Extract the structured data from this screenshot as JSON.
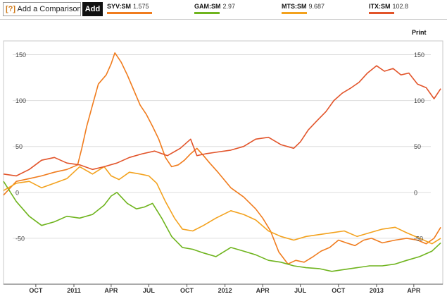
{
  "toolbar": {
    "help_mark": "[?]",
    "compare_label": "Add a Comparison",
    "add_label": "Add",
    "print_label": "Print"
  },
  "legend": [
    {
      "ticker": "SYV:SM",
      "value": "1.575",
      "color": "#f07c1e"
    },
    {
      "ticker": "GAM:SM",
      "value": "2.97",
      "color": "#6fb41e"
    },
    {
      "ticker": "MTS:SM",
      "value": "9.687",
      "color": "#f3a21e"
    },
    {
      "ticker": "ITX:SM",
      "value": "102.8",
      "color": "#e2542a"
    }
  ],
  "chart_data": {
    "type": "line",
    "title": "",
    "xlabel": "",
    "ylabel": "",
    "x_ticks": [
      "OCT",
      "2011",
      "APR",
      "JUL",
      "OCT",
      "2012",
      "APR",
      "JUL",
      "OCT",
      "2013",
      "APR"
    ],
    "y_ticks": [
      150,
      100,
      50,
      0,
      -50
    ],
    "ylim": [
      -100,
      165
    ],
    "xlim": [
      "2010-07-15",
      "2013-06-10"
    ],
    "grid": true,
    "series": [
      {
        "name": "SYV:SM",
        "color": "#f07c1e",
        "x": [
          "2010-07-15",
          "2010-08-15",
          "2010-09-15",
          "2010-10-15",
          "2010-11-15",
          "2010-12-15",
          "2011-01-10",
          "2011-01-20",
          "2011-02-01",
          "2011-02-15",
          "2011-03-01",
          "2011-03-20",
          "2011-04-01",
          "2011-04-10",
          "2011-04-25",
          "2011-05-10",
          "2011-05-25",
          "2011-06-10",
          "2011-06-25",
          "2011-07-10",
          "2011-07-25",
          "2011-08-10",
          "2011-08-25",
          "2011-09-10",
          "2011-09-25",
          "2011-10-10",
          "2011-10-25",
          "2011-11-10",
          "2011-11-25",
          "2011-12-15",
          "2012-01-15",
          "2012-02-15",
          "2012-03-15",
          "2012-04-01",
          "2012-04-20",
          "2012-05-10",
          "2012-06-01",
          "2012-06-20",
          "2012-07-10",
          "2012-08-01",
          "2012-08-20",
          "2012-09-10",
          "2012-10-01",
          "2012-10-20",
          "2012-11-10",
          "2012-12-01",
          "2012-12-20",
          "2013-01-15",
          "2013-02-15",
          "2013-03-15",
          "2013-04-10",
          "2013-05-01",
          "2013-05-20",
          "2013-06-05"
        ],
        "values": [
          -3,
          12,
          15,
          18,
          22,
          25,
          30,
          48,
          72,
          95,
          118,
          128,
          140,
          152,
          142,
          128,
          112,
          95,
          85,
          72,
          58,
          38,
          28,
          30,
          35,
          42,
          48,
          40,
          32,
          22,
          5,
          -5,
          -18,
          -28,
          -42,
          -65,
          -78,
          -74,
          -76,
          -70,
          -64,
          -60,
          -52,
          -55,
          -58,
          -52,
          -50,
          -55,
          -52,
          -50,
          -52,
          -56,
          -50,
          -38
        ]
      },
      {
        "name": "GAM:SM",
        "color": "#6fb41e",
        "x": [
          "2010-07-15",
          "2010-08-15",
          "2010-09-15",
          "2010-10-15",
          "2010-11-15",
          "2010-12-15",
          "2011-01-15",
          "2011-02-15",
          "2011-03-15",
          "2011-04-01",
          "2011-04-15",
          "2011-05-10",
          "2011-06-01",
          "2011-06-20",
          "2011-07-10",
          "2011-08-01",
          "2011-08-25",
          "2011-09-20",
          "2011-10-15",
          "2011-11-10",
          "2011-12-10",
          "2012-01-15",
          "2012-02-15",
          "2012-03-15",
          "2012-04-15",
          "2012-05-15",
          "2012-06-15",
          "2012-07-15",
          "2012-08-15",
          "2012-09-15",
          "2012-10-15",
          "2012-11-15",
          "2012-12-15",
          "2013-01-15",
          "2013-02-15",
          "2013-03-15",
          "2013-04-15",
          "2013-05-15",
          "2013-06-05"
        ],
        "values": [
          12,
          -10,
          -26,
          -36,
          -32,
          -26,
          -28,
          -24,
          -14,
          -4,
          0,
          -12,
          -18,
          -16,
          -12,
          -28,
          -48,
          -60,
          -62,
          -66,
          -70,
          -60,
          -64,
          -68,
          -74,
          -76,
          -80,
          -82,
          -83,
          -86,
          -84,
          -82,
          -80,
          -80,
          -78,
          -74,
          -70,
          -64,
          -55
        ]
      },
      {
        "name": "MTS:SM",
        "color": "#f3a21e",
        "x": [
          "2010-07-15",
          "2010-08-15",
          "2010-09-15",
          "2010-10-15",
          "2010-11-15",
          "2010-12-15",
          "2011-01-15",
          "2011-02-15",
          "2011-03-15",
          "2011-04-01",
          "2011-04-20",
          "2011-05-15",
          "2011-06-10",
          "2011-07-01",
          "2011-07-20",
          "2011-08-10",
          "2011-09-01",
          "2011-09-20",
          "2011-10-15",
          "2011-11-10",
          "2011-12-10",
          "2012-01-15",
          "2012-02-15",
          "2012-03-15",
          "2012-04-15",
          "2012-05-15",
          "2012-06-15",
          "2012-07-15",
          "2012-08-15",
          "2012-09-15",
          "2012-10-15",
          "2012-11-15",
          "2012-12-15",
          "2013-01-15",
          "2013-02-15",
          "2013-03-15",
          "2013-04-15",
          "2013-05-15",
          "2013-06-05"
        ],
        "values": [
          2,
          10,
          12,
          5,
          10,
          15,
          28,
          20,
          28,
          18,
          14,
          22,
          20,
          18,
          10,
          -10,
          -28,
          -40,
          -42,
          -36,
          -28,
          -20,
          -24,
          -30,
          -42,
          -48,
          -52,
          -48,
          -46,
          -44,
          -42,
          -48,
          -44,
          -40,
          -38,
          -44,
          -50,
          -56,
          -50
        ]
      },
      {
        "name": "ITX:SM",
        "color": "#e2542a",
        "x": [
          "2010-07-15",
          "2010-08-15",
          "2010-09-15",
          "2010-10-15",
          "2010-11-15",
          "2010-12-15",
          "2011-01-15",
          "2011-02-15",
          "2011-03-15",
          "2011-04-15",
          "2011-05-15",
          "2011-06-15",
          "2011-07-15",
          "2011-08-15",
          "2011-09-15",
          "2011-10-10",
          "2011-10-25",
          "2011-11-15",
          "2011-12-15",
          "2012-01-15",
          "2012-02-15",
          "2012-03-15",
          "2012-04-15",
          "2012-05-15",
          "2012-06-15",
          "2012-07-01",
          "2012-07-20",
          "2012-08-10",
          "2012-09-01",
          "2012-09-20",
          "2012-10-10",
          "2012-11-01",
          "2012-11-20",
          "2012-12-10",
          "2013-01-01",
          "2013-01-20",
          "2013-02-10",
          "2013-03-01",
          "2013-03-20",
          "2013-04-10",
          "2013-05-01",
          "2013-05-20",
          "2013-06-05"
        ],
        "values": [
          20,
          18,
          25,
          35,
          38,
          32,
          30,
          25,
          28,
          32,
          38,
          42,
          45,
          40,
          48,
          58,
          40,
          42,
          44,
          46,
          50,
          58,
          60,
          52,
          48,
          55,
          68,
          78,
          88,
          100,
          108,
          114,
          120,
          130,
          138,
          132,
          135,
          128,
          130,
          118,
          114,
          102,
          113
        ]
      }
    ]
  }
}
